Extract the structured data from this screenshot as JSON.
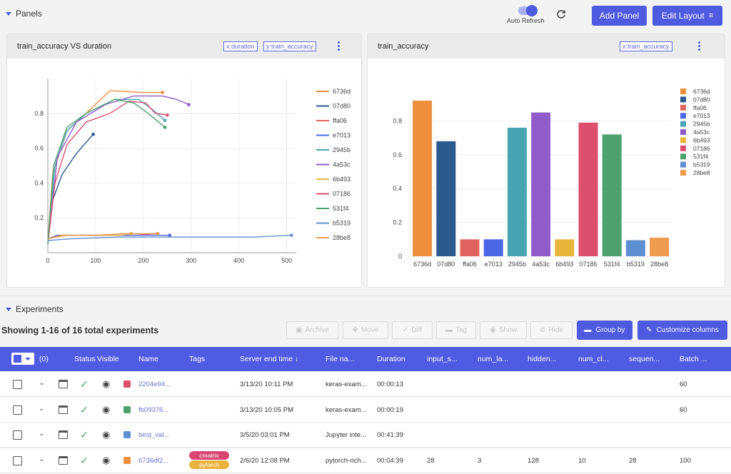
{
  "panels_header": {
    "title": "Panels",
    "auto_refresh_label": "Auto Refresh",
    "add_panel_label": "Add Panel",
    "edit_layout_label": "Edit Layout"
  },
  "colors": {
    "primary": "#4e5ae0",
    "series": [
      "#ee8f3e",
      "#2c5a8f",
      "#e0625f",
      "#4b67e6",
      "#49a4b2",
      "#8f5cc9",
      "#e8b53c",
      "#dd4f6f",
      "#4ea06f",
      "#5f8fd3",
      "#ee9a4f"
    ]
  },
  "left_panel": {
    "title": "train_accuracy VS duration",
    "tag_x": "x:duration",
    "tag_y": "y:train_accuracy",
    "chart_data": {
      "type": "line",
      "x_ticks": [
        "0",
        "100",
        "200",
        "300",
        "400",
        "500"
      ],
      "y_ticks": [
        "0.2",
        "0.4",
        "0.6",
        "0.8"
      ],
      "xlim": [
        0,
        520
      ],
      "ylim": [
        0,
        1.0
      ],
      "series": [
        {
          "name": "6736d",
          "points": [
            [
              0,
              0.05
            ],
            [
              10,
              0.45
            ],
            [
              40,
              0.7
            ],
            [
              80,
              0.8
            ],
            [
              130,
              0.93
            ],
            [
              200,
              0.92
            ],
            [
              240,
              0.92
            ]
          ]
        },
        {
          "name": "07d80",
          "points": [
            [
              0,
              0.05
            ],
            [
              10,
              0.3
            ],
            [
              30,
              0.45
            ],
            [
              60,
              0.57
            ],
            [
              95,
              0.68
            ]
          ]
        },
        {
          "name": "ffa06",
          "points": [
            [
              0,
              0.08
            ],
            [
              20,
              0.1
            ],
            [
              60,
              0.1
            ],
            [
              120,
              0.1
            ],
            [
              180,
              0.1
            ],
            [
              230,
              0.11
            ]
          ]
        },
        {
          "name": "e7013",
          "points": [
            [
              0,
              0.08
            ],
            [
              20,
              0.1
            ],
            [
              80,
              0.1
            ],
            [
              160,
              0.1
            ],
            [
              240,
              0.1
            ],
            [
              255,
              0.1
            ]
          ]
        },
        {
          "name": "2945b",
          "points": [
            [
              0,
              0.05
            ],
            [
              15,
              0.5
            ],
            [
              40,
              0.7
            ],
            [
              80,
              0.8
            ],
            [
              140,
              0.88
            ],
            [
              190,
              0.88
            ],
            [
              220,
              0.82
            ],
            [
              245,
              0.76
            ]
          ]
        },
        {
          "name": "4a53c",
          "points": [
            [
              0,
              0.05
            ],
            [
              20,
              0.55
            ],
            [
              60,
              0.75
            ],
            [
              120,
              0.85
            ],
            [
              180,
              0.9
            ],
            [
              240,
              0.9
            ],
            [
              270,
              0.88
            ],
            [
              295,
              0.85
            ]
          ]
        },
        {
          "name": "6b493",
          "points": [
            [
              0,
              0.08
            ],
            [
              30,
              0.1
            ],
            [
              90,
              0.1
            ],
            [
              150,
              0.1
            ],
            [
              175,
              0.11
            ]
          ]
        },
        {
          "name": "07186",
          "points": [
            [
              0,
              0.05
            ],
            [
              15,
              0.4
            ],
            [
              40,
              0.62
            ],
            [
              80,
              0.75
            ],
            [
              130,
              0.8
            ],
            [
              170,
              0.87
            ],
            [
              205,
              0.86
            ],
            [
              225,
              0.8
            ],
            [
              250,
              0.79
            ]
          ]
        },
        {
          "name": "531f4",
          "points": [
            [
              0,
              0.05
            ],
            [
              12,
              0.5
            ],
            [
              40,
              0.72
            ],
            [
              80,
              0.8
            ],
            [
              140,
              0.88
            ],
            [
              180,
              0.86
            ],
            [
              210,
              0.8
            ],
            [
              245,
              0.72
            ]
          ]
        },
        {
          "name": "b5319",
          "points": [
            [
              0,
              0.07
            ],
            [
              50,
              0.08
            ],
            [
              150,
              0.09
            ],
            [
              300,
              0.09
            ],
            [
              430,
              0.09
            ],
            [
              510,
              0.1
            ]
          ]
        },
        {
          "name": "28be8",
          "points": [
            [
              0,
              0.08
            ],
            [
              40,
              0.1
            ],
            [
              100,
              0.1
            ],
            [
              160,
              0.11
            ],
            [
              230,
              0.11
            ]
          ]
        }
      ]
    }
  },
  "right_panel": {
    "title": "train_accuracy",
    "tag_x": "x:train_accuracy",
    "chart_data": {
      "type": "bar",
      "categories": [
        "6736d",
        "07d80",
        "ffa06",
        "e7013",
        "2945b",
        "4a53c",
        "6b493",
        "07186",
        "531f4",
        "b5319",
        "28be8"
      ],
      "values": [
        0.92,
        0.68,
        0.1,
        0.1,
        0.76,
        0.85,
        0.1,
        0.79,
        0.72,
        0.095,
        0.11
      ],
      "y_ticks": [
        "0",
        "0.2",
        "0.4",
        "0.6",
        "0.8"
      ],
      "ylim": [
        0,
        1.0
      ]
    }
  },
  "experiments": {
    "title": "Experiments",
    "summary": "Showing 1-16 of 16 total experiments",
    "toolbar": {
      "archive": "Archive",
      "move": "Move",
      "diff": "Diff",
      "tag": "Tag",
      "show": "Show",
      "hide": "Hide",
      "group_by": "Group by",
      "customize": "Customize columns"
    },
    "selected_count": "(0)",
    "columns": [
      "Status",
      "Visible",
      "Name",
      "Tags",
      "Server end time",
      "File na...",
      "Duration",
      "input_s...",
      "num_la...",
      "hidden...",
      "num_cl...",
      "sequen...",
      "Batch ..."
    ],
    "rows": [
      {
        "name": "2204e94...",
        "color": "#dd4f6f",
        "end": "3/13/20 10:11 PM",
        "file": "keras-exam...",
        "duration": "00:00:13",
        "input": "",
        "num_la": "",
        "hidden": "",
        "num_cl": "",
        "seq": "",
        "batch": "60",
        "tags": []
      },
      {
        "name": "fb09376...",
        "color": "#4ea06f",
        "end": "3/13/20 10:05 PM",
        "file": "keras-exam...",
        "duration": "00:00:19",
        "input": "",
        "num_la": "",
        "hidden": "",
        "num_cl": "",
        "seq": "",
        "batch": "60",
        "tags": []
      },
      {
        "name": "best_val...",
        "color": "#5f8fd3",
        "end": "3/5/20 03:01 PM",
        "file": "Jupyter inte...",
        "duration": "00:41:39",
        "input": "",
        "num_la": "",
        "hidden": "",
        "num_cl": "",
        "seq": "",
        "batch": "",
        "tags": []
      },
      {
        "name": "6736df2...",
        "color": "#ee8f3e",
        "end": "2/6/20 12:08 PM",
        "file": "pytorch-rich...",
        "duration": "00:04:39",
        "input": "28",
        "num_la": "3",
        "hidden": "128",
        "num_cl": "10",
        "seq": "28",
        "batch": "100",
        "tags": [
          "cmatrix",
          "pytorch"
        ]
      }
    ]
  }
}
